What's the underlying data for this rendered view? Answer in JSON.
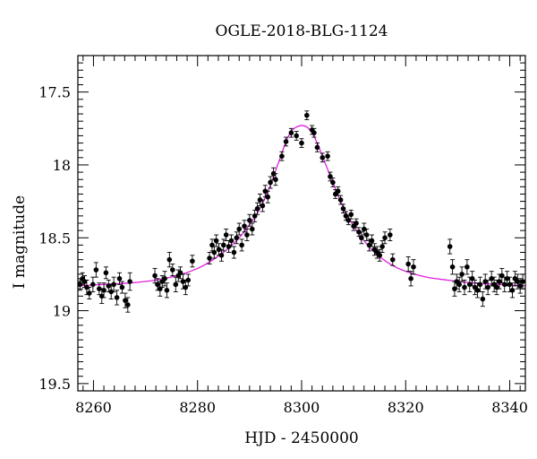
{
  "chart_data": {
    "type": "scatter",
    "title": "OGLE-2018-BLG-1124",
    "xlabel": "HJD - 2450000",
    "ylabel": "I magnitude",
    "xlim": [
      8257,
      8343
    ],
    "ylim": [
      19.55,
      17.25
    ],
    "y_inverted": true,
    "xticks": [
      8260,
      8280,
      8300,
      8320,
      8340
    ],
    "yticks": [
      17.5,
      18,
      18.5,
      19,
      19.5
    ],
    "ytick_labels": [
      "17.5",
      "18",
      "18.5",
      "19",
      "19.5"
    ],
    "grid": false,
    "colors": {
      "points": "#000000",
      "model": "#e020e0"
    },
    "series": [
      {
        "type": "points-with-errorbars",
        "x": [
          8257.4,
          8257.9,
          8258.3,
          8258.7,
          8259.2,
          8259.9,
          8260.5,
          8261.1,
          8261.6,
          8262.0,
          8262.4,
          8262.9,
          8263.4,
          8263.9,
          8264.5,
          8265.0,
          8265.5,
          8266.1,
          8266.6,
          8267.0,
          8271.8,
          8272.3,
          8272.8,
          8273.2,
          8273.7,
          8274.1,
          8274.6,
          8275.2,
          8275.8,
          8276.3,
          8276.7,
          8277.2,
          8277.7,
          8278.2,
          8279.0,
          8282.3,
          8282.8,
          8283.2,
          8283.6,
          8284.1,
          8284.6,
          8285.0,
          8285.5,
          8286.0,
          8286.5,
          8287.0,
          8287.5,
          8288.0,
          8288.5,
          8289.0,
          8289.5,
          8290.0,
          8290.5,
          8291.0,
          8291.5,
          8292.0,
          8292.5,
          8293.0,
          8293.5,
          8294.0,
          8294.6,
          8295.0,
          8296.2,
          8297.0,
          8298.0,
          8299.0,
          8300.0,
          8301.0,
          8302.0,
          8302.4,
          8303.0,
          8304.0,
          8305.0,
          8305.5,
          8306.0,
          8306.5,
          8307.0,
          8307.5,
          8308.0,
          8308.5,
          8309.0,
          8309.5,
          8310.0,
          8310.5,
          8311.0,
          8311.5,
          8312.0,
          8312.5,
          8313.0,
          8313.5,
          8314.0,
          8314.5,
          8315.0,
          8315.5,
          8316.0,
          8317.0,
          8317.5,
          8320.5,
          8321.0,
          8321.5,
          8328.5,
          8329.0,
          8329.4,
          8329.8,
          8330.3,
          8330.8,
          8331.3,
          8331.8,
          8332.3,
          8332.8,
          8333.3,
          8333.8,
          8334.3,
          8334.8,
          8335.3,
          8335.8,
          8336.5,
          8337.0,
          8337.5,
          8338.0,
          8338.5,
          8339.0,
          8339.5,
          8340.0,
          8340.5,
          8341.0,
          8341.5,
          8342.0,
          8342.5
        ],
        "y": [
          18.82,
          18.78,
          18.8,
          18.84,
          18.88,
          18.82,
          18.72,
          18.85,
          18.9,
          18.86,
          18.74,
          18.83,
          18.87,
          18.82,
          18.91,
          18.78,
          18.84,
          18.93,
          18.96,
          18.8,
          18.76,
          18.82,
          18.85,
          18.8,
          18.78,
          18.86,
          18.65,
          18.72,
          18.82,
          18.76,
          18.74,
          18.8,
          18.84,
          18.79,
          18.66,
          18.64,
          18.55,
          18.6,
          18.52,
          18.58,
          18.62,
          18.55,
          18.48,
          18.56,
          18.52,
          18.6,
          18.5,
          18.44,
          18.55,
          18.42,
          18.48,
          18.38,
          18.44,
          18.35,
          18.3,
          18.24,
          18.28,
          18.18,
          18.22,
          18.12,
          18.06,
          18.1,
          17.94,
          17.84,
          17.78,
          17.8,
          17.85,
          17.66,
          17.76,
          17.78,
          17.88,
          17.95,
          17.94,
          18.08,
          18.12,
          18.2,
          18.18,
          18.24,
          18.3,
          18.35,
          18.38,
          18.34,
          18.42,
          18.4,
          18.46,
          18.5,
          18.44,
          18.48,
          18.55,
          18.52,
          18.58,
          18.6,
          18.62,
          18.56,
          18.5,
          18.48,
          18.65,
          18.68,
          18.78,
          18.7,
          18.56,
          18.7,
          18.85,
          18.8,
          18.82,
          18.75,
          18.84,
          18.7,
          18.82,
          18.78,
          18.84,
          18.86,
          18.82,
          18.92,
          18.8,
          18.84,
          18.78,
          18.82,
          18.84,
          18.8,
          18.76,
          18.82,
          18.78,
          18.82,
          18.86,
          18.78,
          18.8,
          18.83,
          18.8
        ],
        "error": [
          0.04,
          0.04,
          0.04,
          0.05,
          0.04,
          0.05,
          0.05,
          0.04,
          0.05,
          0.05,
          0.04,
          0.04,
          0.05,
          0.05,
          0.05,
          0.04,
          0.04,
          0.05,
          0.05,
          0.06,
          0.05,
          0.04,
          0.05,
          0.04,
          0.05,
          0.05,
          0.05,
          0.04,
          0.05,
          0.04,
          0.04,
          0.05,
          0.05,
          0.04,
          0.04,
          0.04,
          0.04,
          0.04,
          0.04,
          0.04,
          0.04,
          0.04,
          0.04,
          0.04,
          0.04,
          0.04,
          0.04,
          0.04,
          0.04,
          0.04,
          0.04,
          0.04,
          0.04,
          0.04,
          0.04,
          0.04,
          0.04,
          0.04,
          0.04,
          0.04,
          0.04,
          0.04,
          0.03,
          0.03,
          0.03,
          0.03,
          0.03,
          0.03,
          0.03,
          0.03,
          0.03,
          0.03,
          0.03,
          0.03,
          0.03,
          0.03,
          0.03,
          0.03,
          0.03,
          0.03,
          0.03,
          0.03,
          0.03,
          0.03,
          0.03,
          0.04,
          0.04,
          0.04,
          0.04,
          0.04,
          0.04,
          0.04,
          0.04,
          0.04,
          0.04,
          0.04,
          0.04,
          0.05,
          0.05,
          0.05,
          0.05,
          0.05,
          0.05,
          0.05,
          0.05,
          0.05,
          0.05,
          0.05,
          0.05,
          0.05,
          0.05,
          0.05,
          0.05,
          0.05,
          0.05,
          0.05,
          0.05,
          0.05,
          0.05,
          0.05,
          0.05,
          0.05,
          0.05,
          0.05,
          0.05,
          0.05,
          0.05,
          0.05,
          0.05
        ]
      },
      {
        "type": "model-curve",
        "x": [
          8257,
          8262,
          8267,
          8272,
          8276,
          8280,
          8283,
          8286,
          8288,
          8290,
          8292,
          8294,
          8295,
          8296,
          8297,
          8298,
          8299,
          8300,
          8301,
          8302,
          8303,
          8304,
          8305,
          8306,
          8308,
          8310,
          8312,
          8314,
          8317,
          8320,
          8324,
          8328,
          8333,
          8338,
          8343
        ],
        "y": [
          18.83,
          18.82,
          18.81,
          18.79,
          18.76,
          18.71,
          18.65,
          18.57,
          18.5,
          18.41,
          18.3,
          18.14,
          18.04,
          17.94,
          17.84,
          17.77,
          17.74,
          17.73,
          17.74,
          17.78,
          17.85,
          17.94,
          18.03,
          18.12,
          18.29,
          18.42,
          18.52,
          18.6,
          18.68,
          18.73,
          18.77,
          18.79,
          18.81,
          18.82,
          18.83
        ]
      }
    ]
  }
}
